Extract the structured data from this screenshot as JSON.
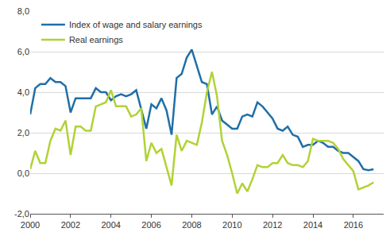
{
  "chart_data": {
    "type": "line",
    "x": [
      2000,
      2000.25,
      2000.5,
      2000.75,
      2001,
      2001.25,
      2001.5,
      2001.75,
      2002,
      2002.25,
      2002.5,
      2002.75,
      2003,
      2003.25,
      2003.5,
      2003.75,
      2004,
      2004.25,
      2004.5,
      2004.75,
      2005,
      2005.25,
      2005.5,
      2005.75,
      2006,
      2006.25,
      2006.5,
      2006.75,
      2007,
      2007.25,
      2007.5,
      2007.75,
      2008,
      2008.25,
      2008.5,
      2008.75,
      2009,
      2009.25,
      2009.5,
      2009.75,
      2010,
      2010.25,
      2010.5,
      2010.75,
      2011,
      2011.25,
      2011.5,
      2011.75,
      2012,
      2012.25,
      2012.5,
      2012.75,
      2013,
      2013.25,
      2013.5,
      2013.75,
      2014,
      2014.25,
      2014.5,
      2014.75,
      2015,
      2015.25,
      2015.5,
      2015.75,
      2016,
      2016.25,
      2016.5,
      2016.75,
      2017
    ],
    "series": [
      {
        "name": "Index of wage and salary earnings",
        "color": "#1f6fa8",
        "values": [
          2.9,
          4.2,
          4.4,
          4.4,
          4.7,
          4.5,
          4.5,
          4.3,
          3.0,
          3.7,
          3.7,
          3.7,
          3.7,
          4.2,
          4.0,
          4.0,
          3.6,
          3.8,
          3.9,
          3.8,
          3.9,
          4.1,
          3.2,
          2.2,
          3.4,
          3.2,
          3.7,
          3.1,
          1.9,
          4.7,
          4.9,
          5.7,
          6.1,
          5.3,
          4.5,
          4.4,
          2.9,
          3.3,
          2.6,
          2.4,
          2.2,
          2.2,
          2.8,
          2.9,
          2.8,
          3.5,
          3.3,
          3.0,
          2.7,
          2.2,
          2.1,
          2.3,
          1.9,
          1.8,
          1.3,
          1.4,
          1.4,
          1.6,
          1.5,
          1.3,
          1.3,
          1.1,
          1.0,
          1.0,
          0.8,
          0.6,
          0.2,
          0.15,
          0.2
        ]
      },
      {
        "name": "Real earnings",
        "color": "#b1d235",
        "values": [
          0.2,
          1.1,
          0.5,
          0.5,
          1.6,
          2.2,
          2.1,
          2.6,
          0.9,
          2.3,
          2.3,
          2.1,
          2.1,
          3.3,
          3.4,
          3.5,
          4.1,
          3.3,
          3.3,
          3.3,
          2.8,
          2.9,
          3.2,
          0.6,
          1.5,
          1.0,
          1.2,
          0.3,
          -0.6,
          1.9,
          1.1,
          1.6,
          1.5,
          1.4,
          2.5,
          4.0,
          5.0,
          3.8,
          1.6,
          0.9,
          0.0,
          -1.0,
          -0.5,
          -0.9,
          -0.3,
          0.4,
          0.3,
          0.3,
          0.5,
          0.5,
          0.9,
          0.5,
          0.4,
          0.4,
          0.3,
          0.6,
          1.7,
          1.6,
          1.6,
          1.6,
          1.5,
          1.2,
          0.7,
          0.4,
          0.1,
          -0.8,
          -0.7,
          -0.6,
          -0.45
        ]
      }
    ],
    "xlim": [
      2000,
      2017.5
    ],
    "xticks": [
      2000,
      2002,
      2004,
      2006,
      2008,
      2010,
      2012,
      2014,
      2016
    ],
    "ylim": [
      -2,
      8
    ],
    "yticks": [
      {
        "value": -2,
        "label": "-2,0"
      },
      {
        "value": 0,
        "label": "0,0"
      },
      {
        "value": 2,
        "label": "2,0"
      },
      {
        "value": 4,
        "label": "4,0"
      },
      {
        "value": 6,
        "label": "6,0"
      },
      {
        "value": 8,
        "label": "8,0"
      }
    ],
    "grid": true,
    "legend": "upper left"
  }
}
